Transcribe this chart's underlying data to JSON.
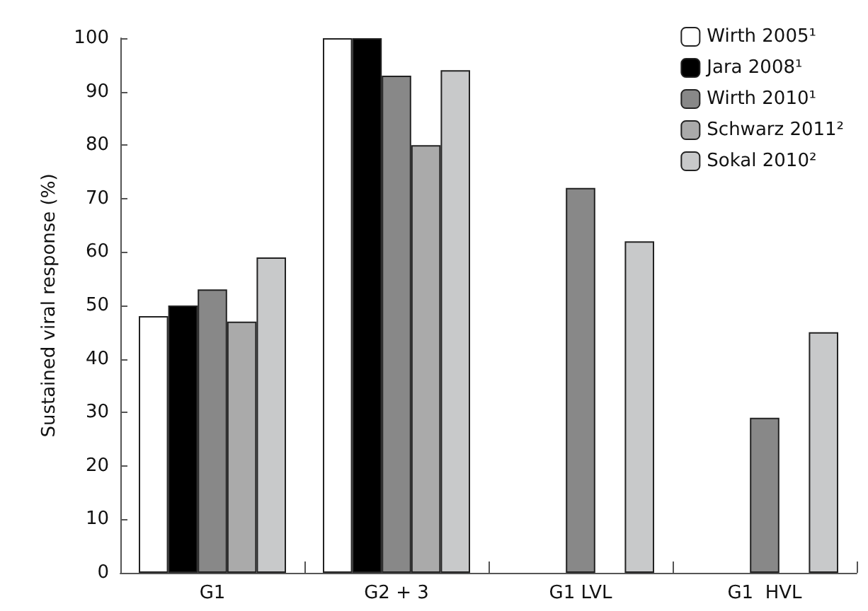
{
  "chart_data": {
    "type": "bar",
    "ylabel": "Sustained viral response (%)",
    "categories": [
      "G1",
      "G2 + 3",
      "G1 LVL",
      "G1  HVL"
    ],
    "series": [
      {
        "name": "Wirth 2005¹",
        "color": "#ffffff",
        "values": [
          48,
          100,
          null,
          null
        ]
      },
      {
        "name": "Jara 2008¹",
        "color": "#000000",
        "values": [
          50,
          100,
          null,
          null
        ]
      },
      {
        "name": "Wirth 2010¹",
        "color": "#888888",
        "values": [
          53,
          93,
          72,
          29
        ]
      },
      {
        "name": "Schwarz 2011²",
        "color": "#aaaaaa",
        "values": [
          47,
          80,
          null,
          null
        ]
      },
      {
        "name": "Sokal 2010²",
        "color": "#c8c9ca",
        "values": [
          59,
          94,
          62,
          45
        ]
      }
    ],
    "ylim": [
      0,
      100
    ],
    "yticks": [
      0,
      10,
      20,
      30,
      40,
      50,
      60,
      70,
      80,
      90,
      100
    ],
    "grid": false,
    "legend": "top right"
  }
}
